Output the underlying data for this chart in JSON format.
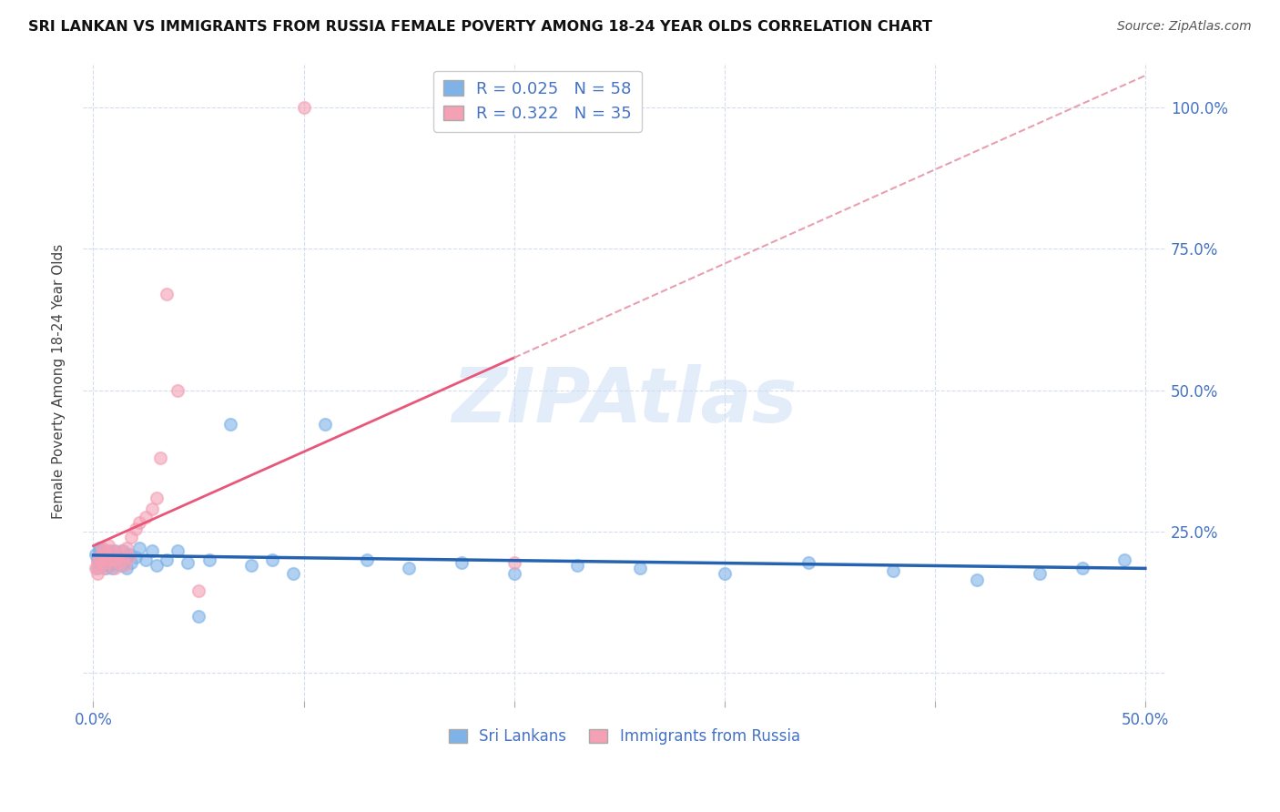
{
  "title": "SRI LANKAN VS IMMIGRANTS FROM RUSSIA FEMALE POVERTY AMONG 18-24 YEAR OLDS CORRELATION CHART",
  "source": "Source: ZipAtlas.com",
  "ylabel": "Female Poverty Among 18-24 Year Olds",
  "xlim": [
    -0.005,
    0.51
  ],
  "ylim": [
    -0.05,
    1.08
  ],
  "xticks": [
    0.0,
    0.1,
    0.2,
    0.3,
    0.4,
    0.5
  ],
  "xticklabels": [
    "0.0%",
    "",
    "",
    "",
    "",
    "50.0%"
  ],
  "yticks": [
    0.0,
    0.25,
    0.5,
    0.75,
    1.0
  ],
  "yticklabels_right": [
    "",
    "25.0%",
    "50.0%",
    "75.0%",
    "100.0%"
  ],
  "sri_lankan_R": 0.025,
  "sri_lankan_N": 58,
  "russia_R": 0.322,
  "russia_N": 35,
  "sri_lankan_color": "#7fb3e8",
  "russia_color": "#f4a0b5",
  "sri_lankan_line_color": "#2563b0",
  "russia_line_color": "#e8567a",
  "russia_dashed_color": "#e8a0b0",
  "watermark": "ZIPAtlas",
  "sl_x": [
    0.001,
    0.002,
    0.002,
    0.003,
    0.003,
    0.003,
    0.004,
    0.004,
    0.004,
    0.005,
    0.005,
    0.005,
    0.006,
    0.006,
    0.007,
    0.007,
    0.008,
    0.008,
    0.009,
    0.009,
    0.01,
    0.01,
    0.011,
    0.012,
    0.013,
    0.014,
    0.015,
    0.016,
    0.017,
    0.018,
    0.02,
    0.022,
    0.025,
    0.028,
    0.03,
    0.035,
    0.04,
    0.045,
    0.05,
    0.055,
    0.065,
    0.075,
    0.085,
    0.095,
    0.11,
    0.13,
    0.15,
    0.175,
    0.2,
    0.23,
    0.26,
    0.3,
    0.34,
    0.38,
    0.42,
    0.45,
    0.47,
    0.49
  ],
  "sl_y": [
    0.21,
    0.2,
    0.185,
    0.215,
    0.195,
    0.22,
    0.205,
    0.19,
    0.215,
    0.2,
    0.195,
    0.21,
    0.185,
    0.205,
    0.195,
    0.215,
    0.19,
    0.2,
    0.185,
    0.21,
    0.2,
    0.215,
    0.195,
    0.205,
    0.19,
    0.215,
    0.2,
    0.185,
    0.21,
    0.195,
    0.205,
    0.22,
    0.2,
    0.215,
    0.19,
    0.2,
    0.215,
    0.195,
    0.1,
    0.2,
    0.44,
    0.19,
    0.2,
    0.175,
    0.44,
    0.2,
    0.185,
    0.195,
    0.175,
    0.19,
    0.185,
    0.175,
    0.195,
    0.18,
    0.165,
    0.175,
    0.185,
    0.2
  ],
  "ru_x": [
    0.001,
    0.002,
    0.002,
    0.003,
    0.003,
    0.004,
    0.004,
    0.005,
    0.005,
    0.006,
    0.006,
    0.007,
    0.008,
    0.009,
    0.01,
    0.01,
    0.011,
    0.012,
    0.013,
    0.014,
    0.015,
    0.016,
    0.017,
    0.018,
    0.02,
    0.022,
    0.025,
    0.028,
    0.03,
    0.032,
    0.035,
    0.04,
    0.05,
    0.1,
    0.2
  ],
  "ru_y": [
    0.185,
    0.175,
    0.195,
    0.205,
    0.19,
    0.22,
    0.2,
    0.215,
    0.185,
    0.195,
    0.21,
    0.225,
    0.2,
    0.215,
    0.2,
    0.185,
    0.21,
    0.195,
    0.215,
    0.2,
    0.19,
    0.22,
    0.205,
    0.24,
    0.255,
    0.265,
    0.275,
    0.29,
    0.31,
    0.38,
    0.67,
    0.5,
    0.145,
    1.0,
    0.195
  ]
}
